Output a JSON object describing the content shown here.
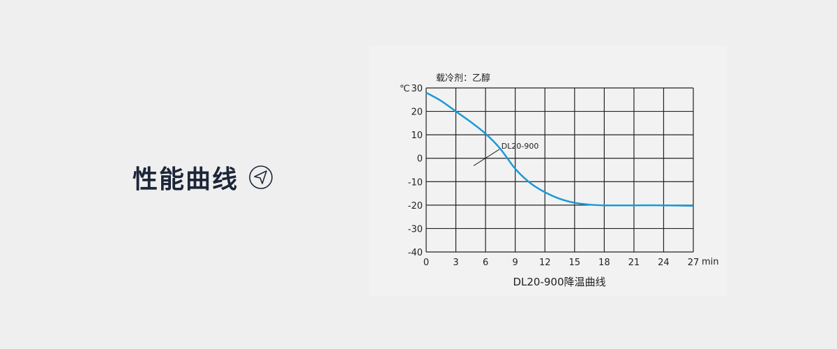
{
  "heading": {
    "title": "性能曲线",
    "icon": "arrow-left-circle-icon"
  },
  "chart_data": {
    "type": "line",
    "subtitle": "载冷剂：乙醇",
    "title": "DL20-900降温曲线",
    "xlabel": "min",
    "ylabel": "℃",
    "xlim": [
      0,
      27
    ],
    "ylim": [
      -40,
      30
    ],
    "xticks": [
      0,
      3,
      6,
      9,
      12,
      15,
      18,
      21,
      24,
      27
    ],
    "yticks": [
      30,
      20,
      10,
      0,
      -10,
      -20,
      -30,
      -40
    ],
    "grid": true,
    "line_color": "#1a9ad6",
    "series": [
      {
        "name": "DL20-900",
        "x": [
          0,
          1.5,
          3,
          4.5,
          6,
          7.5,
          9,
          10.5,
          12,
          13.5,
          15,
          16.5,
          18,
          21,
          24,
          27
        ],
        "y": [
          28,
          24.5,
          20,
          15.5,
          10.5,
          4,
          -4.5,
          -10.5,
          -14.5,
          -17.3,
          -19,
          -19.8,
          -20.1,
          -20.1,
          -20.1,
          -20.3
        ]
      }
    ]
  }
}
